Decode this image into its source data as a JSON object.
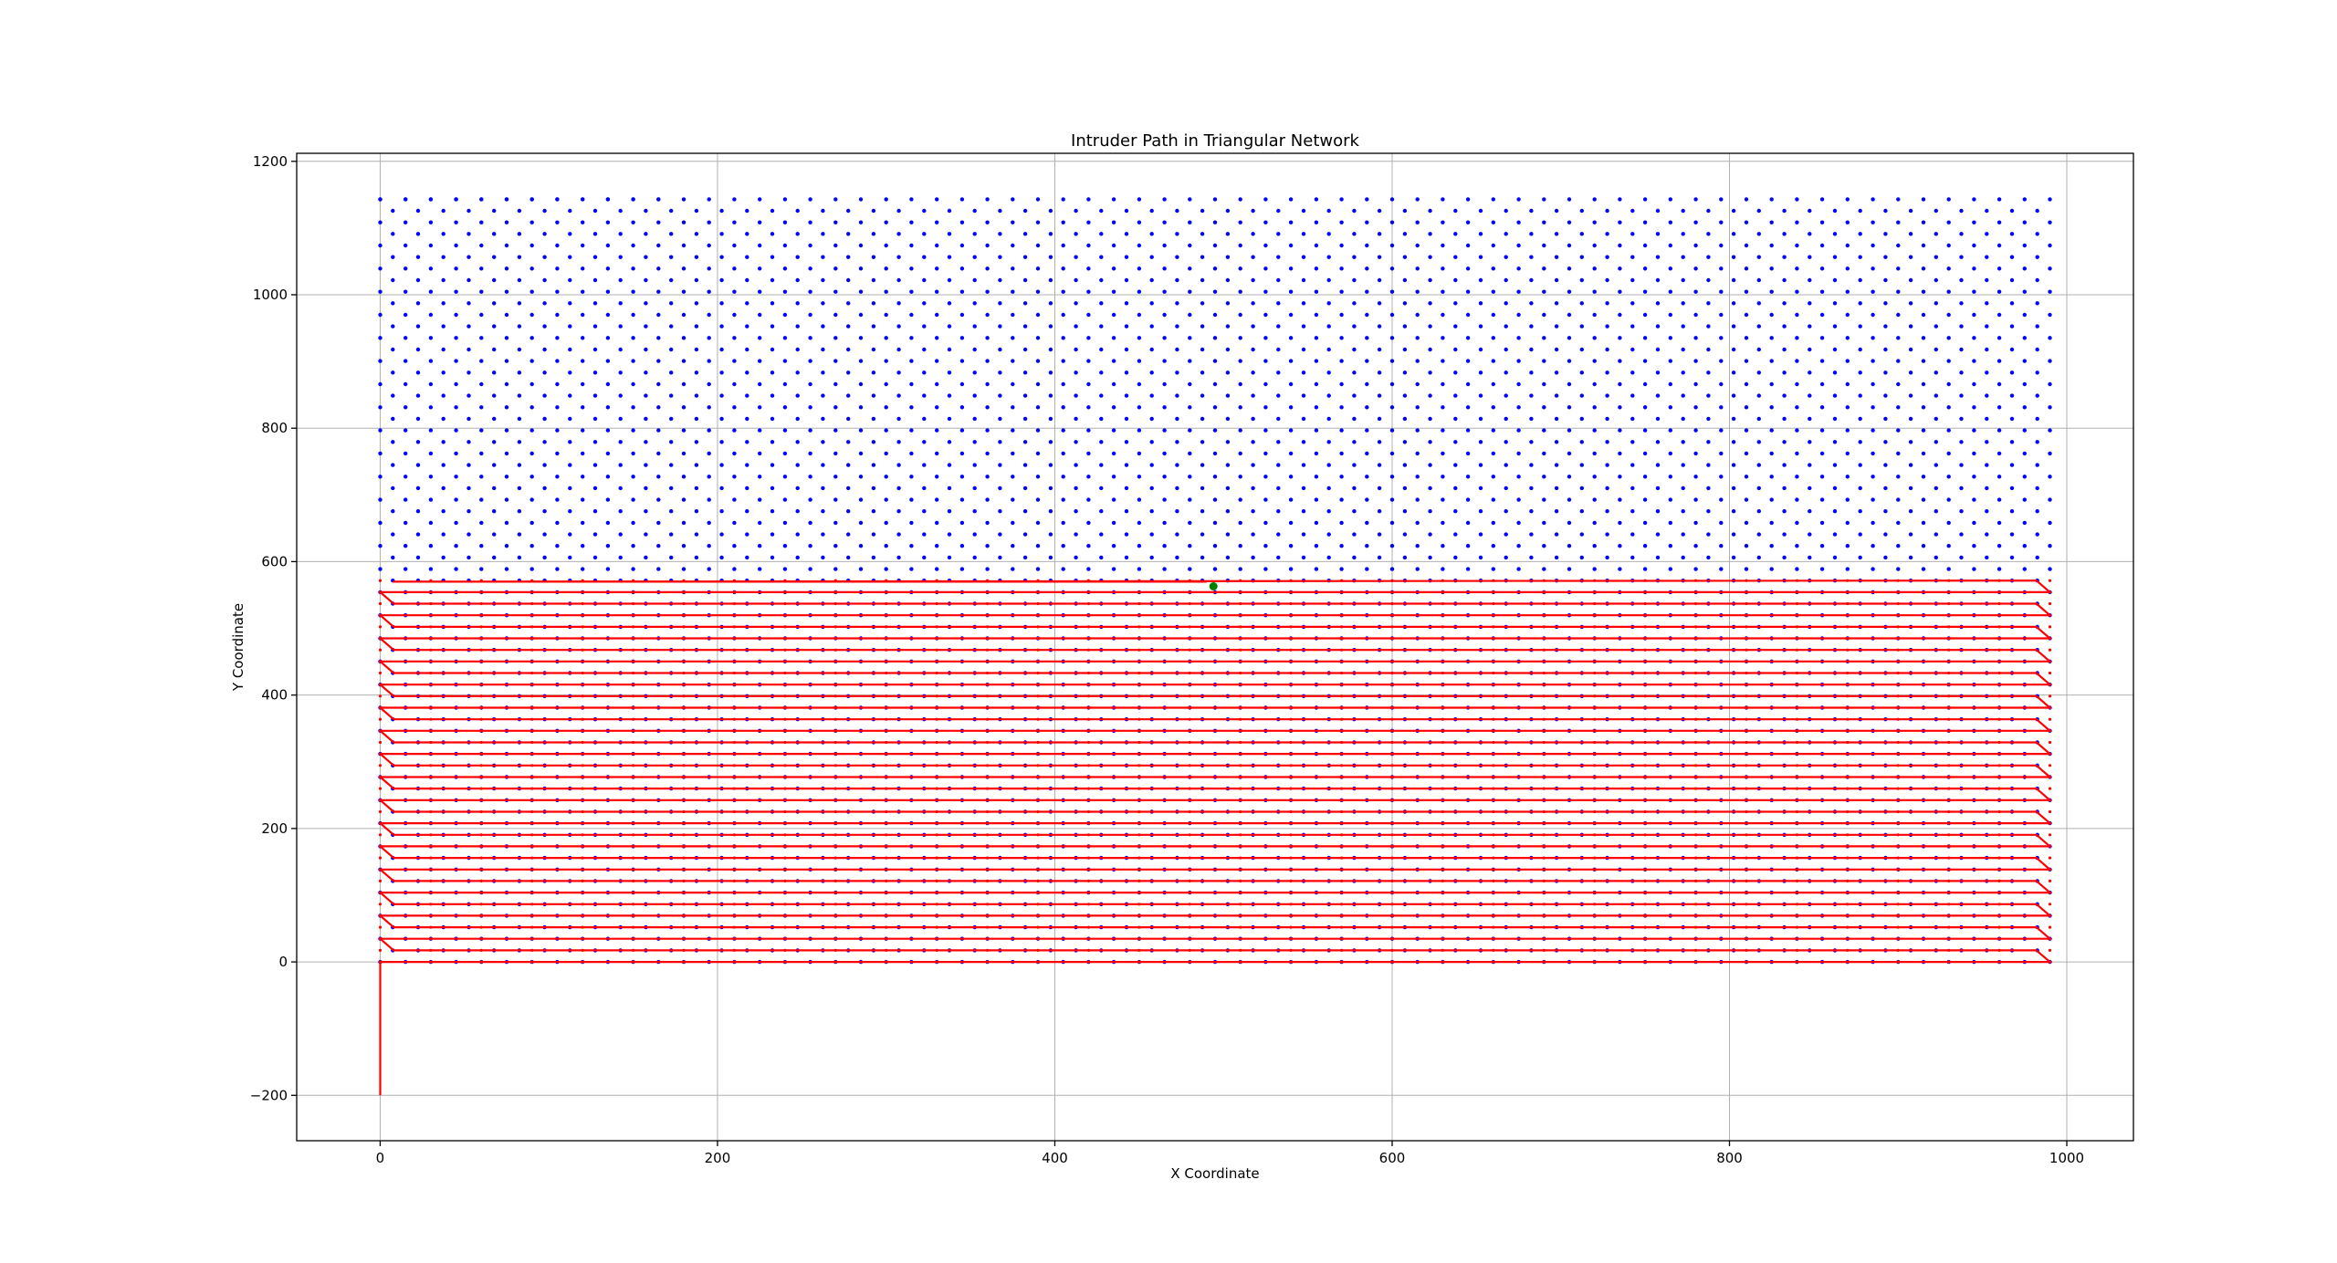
{
  "chart_data": {
    "type": "scatter",
    "title": "Intruder Path in Triangular Network",
    "xlabel": "X Coordinate",
    "ylabel": "Y Coordinate",
    "xlim": [
      -49.5,
      1039.5
    ],
    "ylim": [
      -268,
      1212
    ],
    "xticks": [
      0,
      200,
      400,
      600,
      800,
      1000
    ],
    "yticks": [
      -200,
      0,
      200,
      400,
      600,
      800,
      1000,
      1200
    ],
    "grid": true,
    "colors": {
      "nodes": "#0000ff",
      "path": "#ff0000",
      "intruder": "#008000"
    },
    "nodes": {
      "series_name": "sensor nodes",
      "row_spacing_y": 17.32,
      "x_spacing": 15,
      "x_min": 0,
      "x_max": 990,
      "rows": 67,
      "first_row_y": 0,
      "odd_row_x_offset": 7.5,
      "top_row_y": 1143,
      "top_row_x": [
        0,
        15,
        30,
        45,
        60,
        75,
        90,
        105,
        120,
        135,
        150,
        165
      ]
    },
    "path": {
      "series_name": "intruder path",
      "start": [
        0,
        -200
      ],
      "serpentine_rows": 33,
      "row_pitch_y": 17.32,
      "x_left": 0,
      "x_right": 990,
      "end": [
        490,
        570
      ]
    },
    "intruder_position": {
      "x": 494,
      "y": 563
    }
  }
}
